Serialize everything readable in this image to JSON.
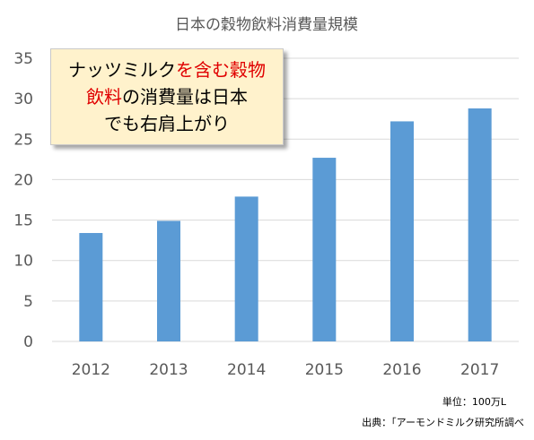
{
  "chart_data": {
    "type": "bar",
    "title": "日本の穀物飲料消費量規模",
    "categories": [
      "2012",
      "2013",
      "2014",
      "2015",
      "2016",
      "2017"
    ],
    "values": [
      13.4,
      14.9,
      17.9,
      22.7,
      27.2,
      28.8
    ],
    "ylim": [
      0,
      35
    ],
    "yticks": [
      0,
      5,
      10,
      15,
      20,
      25,
      30,
      35
    ],
    "ytick_labels": [
      "0",
      "5",
      "10",
      "15",
      "20",
      "25",
      "30",
      "35"
    ],
    "grid": true,
    "bar_color": "#5b9bd5",
    "grid_color": "#d9d9d9",
    "annotation": {
      "line1": [
        "ナッツミルク",
        "を含む穀物"
      ],
      "line2": [
        "飲料",
        "の消費量は日本"
      ],
      "line3": "でも右肩上がり",
      "background": "#fff2cc",
      "highlight_color": "#e00000"
    },
    "unit_note": "単位：100万L",
    "source_note": "出典：「アーモンドミルク研究所調べ"
  }
}
